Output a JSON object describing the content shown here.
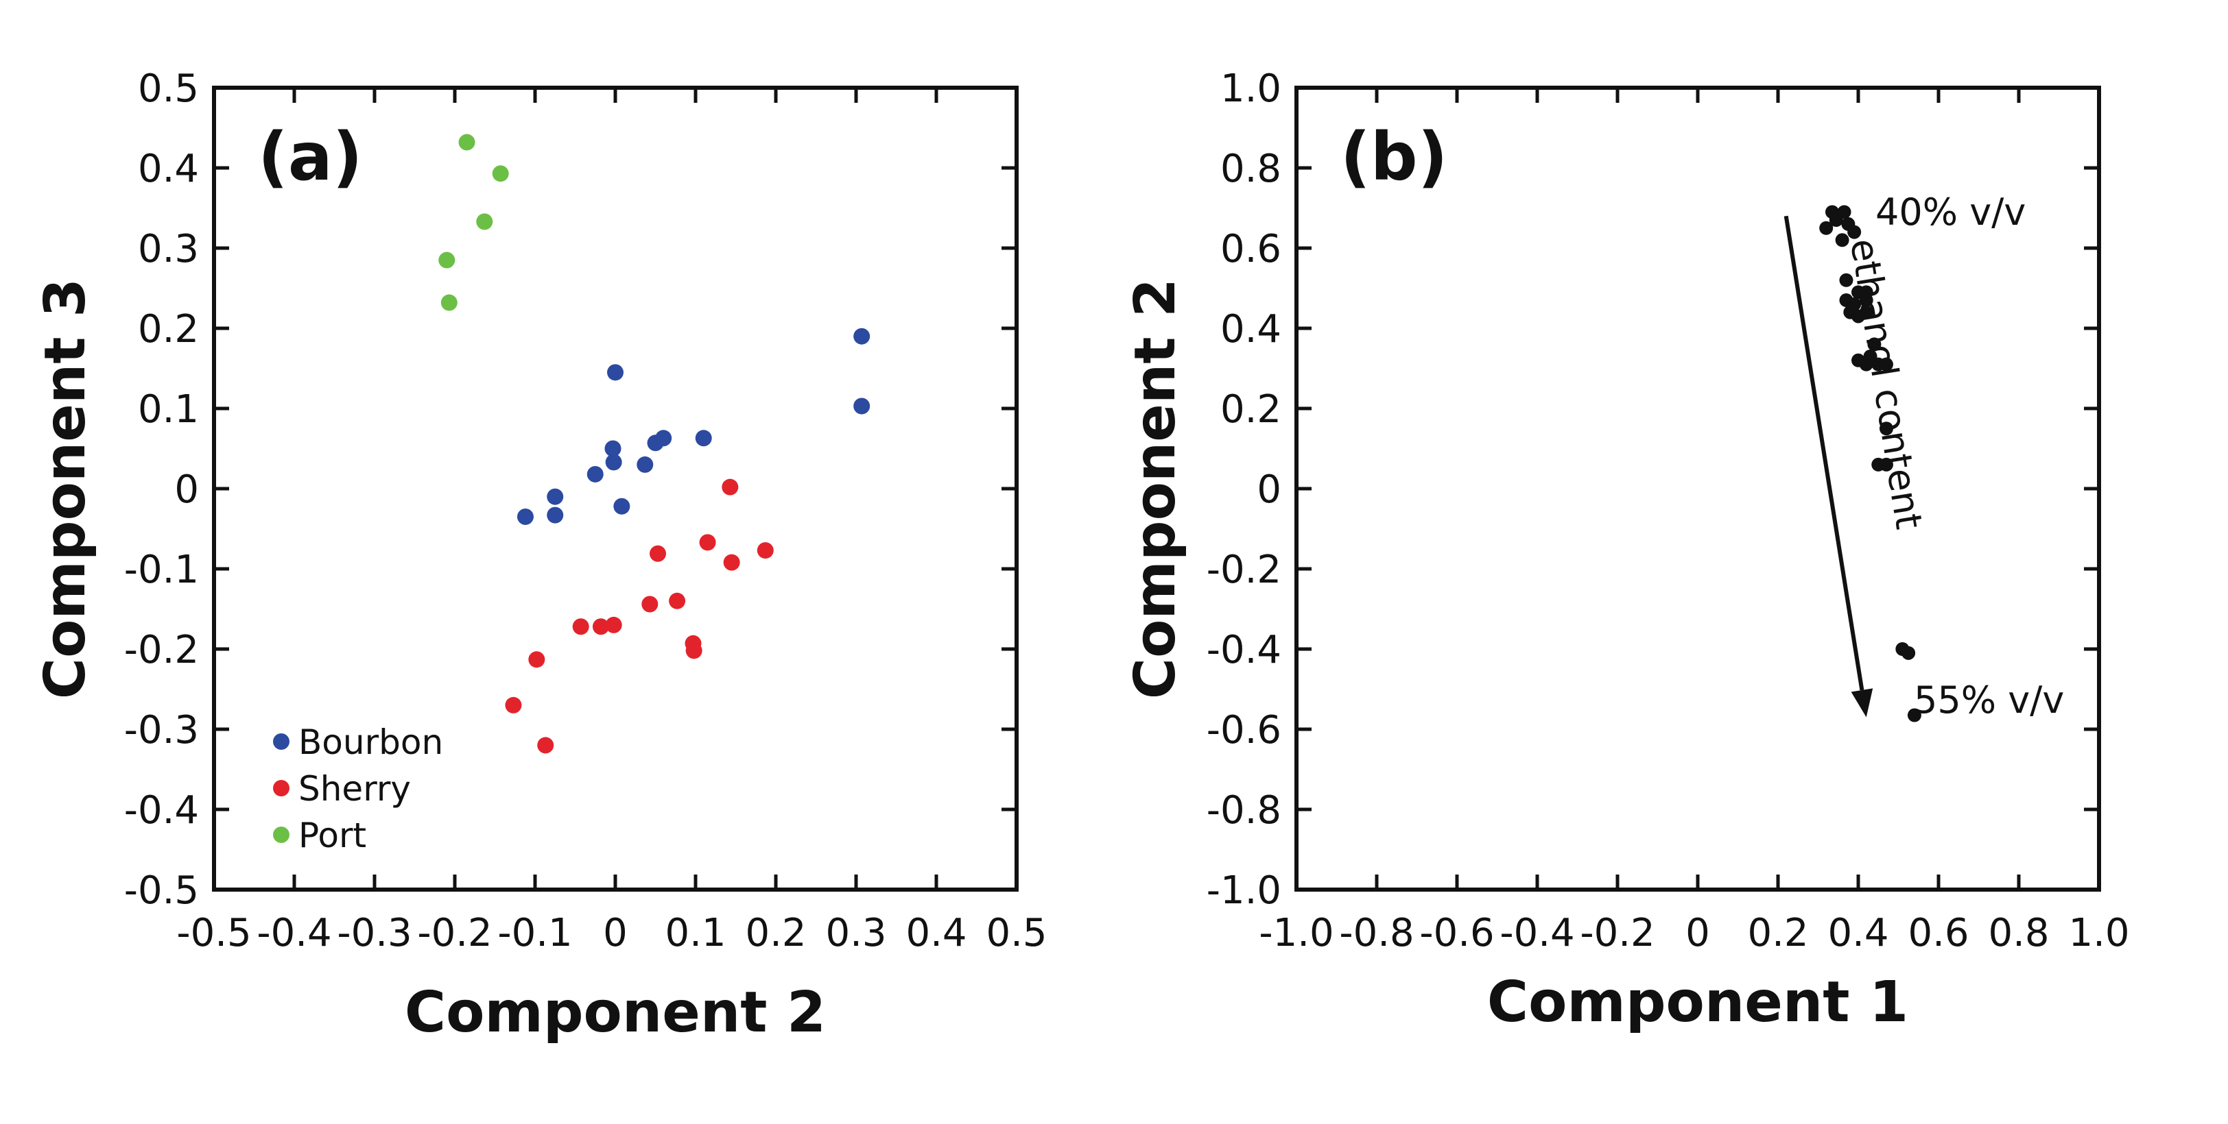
{
  "chart_data": [
    {
      "type": "scatter",
      "panel_label": "(a)",
      "xlabel": "Component 2",
      "ylabel": "Component 3",
      "xlim": [
        -0.5,
        0.5
      ],
      "ylim": [
        -0.5,
        0.5
      ],
      "x_ticks": [
        "-0.5",
        "-0.4",
        "-0.3",
        "-0.2",
        "-0.1",
        "0",
        "0.1",
        "0.2",
        "0.3",
        "0.4",
        "0.5"
      ],
      "y_ticks": [
        "0.5",
        "0.4",
        "0.3",
        "0.2",
        "0.1",
        "0",
        "-0.1",
        "-0.2",
        "-0.3",
        "-0.4",
        "-0.5"
      ],
      "grid": false,
      "legend_position": "bottom-left",
      "series": [
        {
          "name": "Bourbon",
          "color": "#2b4aa0",
          "points": [
            [
              0.0,
              0.145
            ],
            [
              -0.003,
              0.05
            ],
            [
              -0.002,
              0.033
            ],
            [
              -0.025,
              0.018
            ],
            [
              0.037,
              0.03
            ],
            [
              0.05,
              0.057
            ],
            [
              0.06,
              0.063
            ],
            [
              0.11,
              0.063
            ],
            [
              -0.075,
              -0.01
            ],
            [
              -0.075,
              -0.033
            ],
            [
              -0.112,
              -0.035
            ],
            [
              0.008,
              -0.022
            ],
            [
              0.307,
              0.19
            ],
            [
              0.307,
              0.103
            ]
          ]
        },
        {
          "name": "Sherry",
          "color": "#e3232b",
          "points": [
            [
              0.143,
              0.002
            ],
            [
              0.115,
              -0.067
            ],
            [
              0.187,
              -0.077
            ],
            [
              0.145,
              -0.092
            ],
            [
              0.053,
              -0.081
            ],
            [
              0.077,
              -0.14
            ],
            [
              0.043,
              -0.144
            ],
            [
              -0.002,
              -0.17
            ],
            [
              -0.018,
              -0.172
            ],
            [
              -0.043,
              -0.172
            ],
            [
              0.097,
              -0.193
            ],
            [
              0.098,
              -0.202
            ],
            [
              -0.098,
              -0.213
            ],
            [
              -0.127,
              -0.27
            ],
            [
              -0.087,
              -0.32
            ]
          ]
        },
        {
          "name": "Port",
          "color": "#6cbf45",
          "points": [
            [
              -0.185,
              0.432
            ],
            [
              -0.143,
              0.393
            ],
            [
              -0.163,
              0.333
            ],
            [
              -0.21,
              0.285
            ],
            [
              -0.207,
              0.232
            ]
          ]
        }
      ]
    },
    {
      "type": "scatter",
      "panel_label": "(b)",
      "xlabel": "Component 1",
      "ylabel": "Component 2",
      "xlim": [
        -1.0,
        1.0
      ],
      "ylim": [
        -1.0,
        1.0
      ],
      "x_ticks": [
        "-1.0",
        "-0.8",
        "-0.6",
        "-0.4",
        "-0.2",
        "0",
        "0.2",
        "0.4",
        "0.6",
        "0.8",
        "1.0"
      ],
      "y_ticks": [
        "1.0",
        "0.8",
        "0.6",
        "0.4",
        "0.2",
        "0",
        "-0.2",
        "-0.4",
        "-0.6",
        "-0.8",
        "-1.0"
      ],
      "grid": false,
      "series": [
        {
          "color": "#111111",
          "points": [
            [
              0.335,
              0.69
            ],
            [
              0.365,
              0.69
            ],
            [
              0.345,
              0.67
            ],
            [
              0.32,
              0.65
            ],
            [
              0.375,
              0.66
            ],
            [
              0.39,
              0.64
            ],
            [
              0.36,
              0.62
            ],
            [
              0.37,
              0.52
            ],
            [
              0.4,
              0.49
            ],
            [
              0.42,
              0.49
            ],
            [
              0.37,
              0.47
            ],
            [
              0.39,
              0.46
            ],
            [
              0.42,
              0.47
            ],
            [
              0.38,
              0.44
            ],
            [
              0.4,
              0.43
            ],
            [
              0.42,
              0.44
            ],
            [
              0.44,
              0.36
            ],
            [
              0.4,
              0.32
            ],
            [
              0.42,
              0.31
            ],
            [
              0.43,
              0.33
            ],
            [
              0.45,
              0.31
            ],
            [
              0.47,
              0.31
            ],
            [
              0.47,
              0.15
            ],
            [
              0.45,
              0.06
            ],
            [
              0.47,
              0.06
            ],
            [
              0.51,
              -0.4
            ],
            [
              0.525,
              -0.41
            ],
            [
              0.54,
              -0.565
            ]
          ]
        }
      ],
      "annotations": {
        "top": "40% v/v",
        "bottom": "55% v/v",
        "arrow_label": "ethanol content",
        "arrow_from": [
          0.22,
          0.68
        ],
        "arrow_to": [
          0.42,
          -0.57
        ]
      }
    }
  ]
}
